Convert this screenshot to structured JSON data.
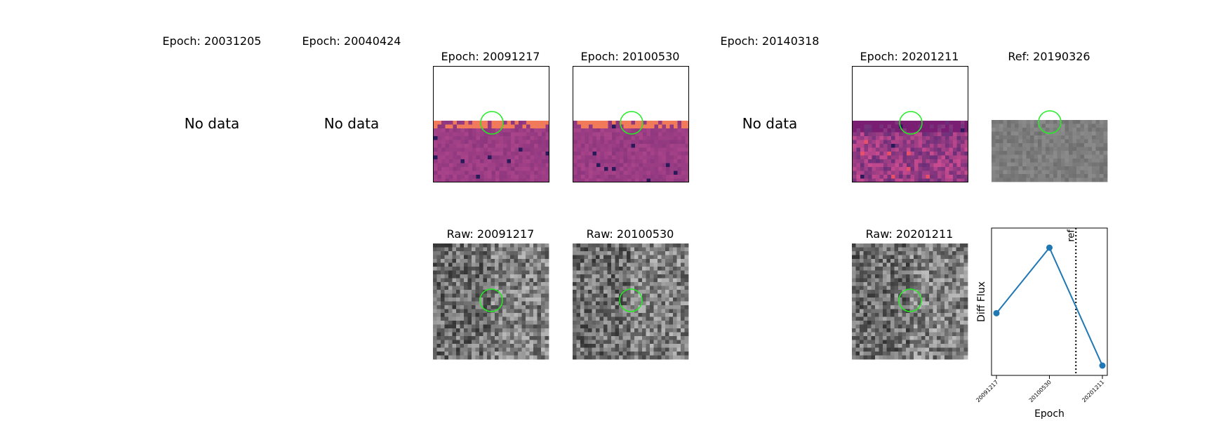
{
  "epochs": [
    {
      "title": "Epoch: 20031205",
      "status": "No data"
    },
    {
      "title": "Epoch: 20040424",
      "status": "No data"
    },
    {
      "title": "Epoch: 20091217",
      "status": ""
    },
    {
      "title": "Epoch: 20100530",
      "status": ""
    },
    {
      "title": "Epoch: 20140318",
      "status": "No data"
    },
    {
      "title": "Epoch: 20201211",
      "status": ""
    }
  ],
  "reference": {
    "title": "Ref: 20190326"
  },
  "raw": [
    {
      "title": "Raw: 20091217"
    },
    {
      "title": "Raw: 20100530"
    },
    {
      "title": "Raw: 20201211"
    }
  ],
  "colors": {
    "aperture": "#22ee22",
    "line": "#1f77b4",
    "diff_bg": "#9b3d84",
    "diff_edge": "#f07a5a"
  },
  "chart_data": {
    "type": "line",
    "x": [
      "20091217",
      "20100530",
      "20201211"
    ],
    "series": [
      {
        "values": [
          0.0,
          1.0,
          -0.8
        ]
      }
    ],
    "xlabel": "Epoch",
    "ylabel": "Diff Flux",
    "reference_marker": {
      "label": "ref",
      "position_between": [
        "20100530",
        "20201211"
      ],
      "fraction": 0.5
    },
    "grid": false
  }
}
